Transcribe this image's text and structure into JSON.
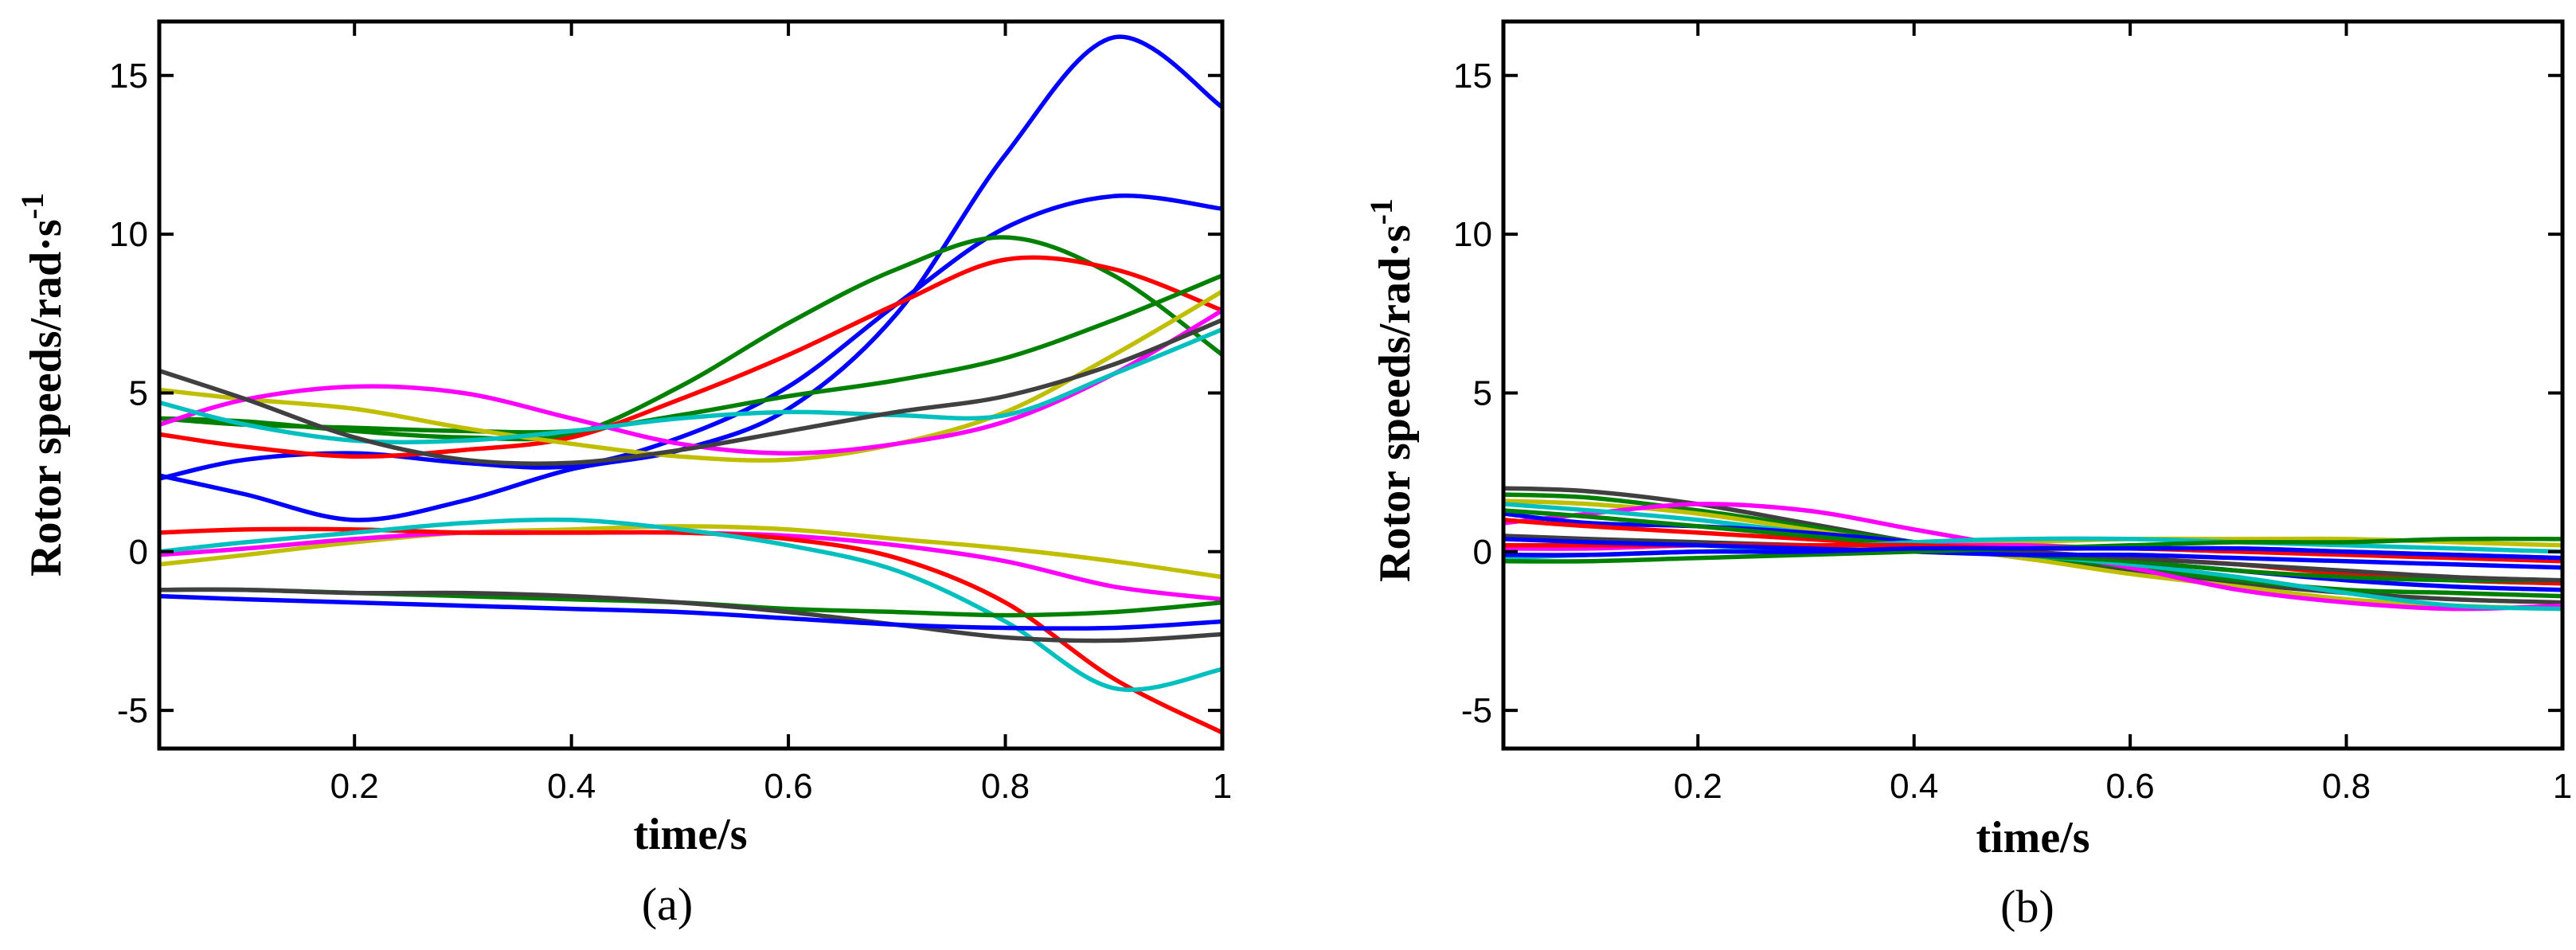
{
  "chart_data": [
    {
      "type": "line",
      "panel_label": "(a)",
      "xlabel": "time/s",
      "ylabel_main": "Rotor speeds/rad·s",
      "ylabel_sup": "-1",
      "xlim": [
        0.02,
        1.0
      ],
      "ylim": [
        -6.2,
        16.7
      ],
      "xticks": [
        0.2,
        0.4,
        0.6,
        0.8,
        1.0
      ],
      "xtick_labels": [
        "0.2",
        "0.4",
        "0.6",
        "0.8",
        "1"
      ],
      "yticks": [
        -5,
        0,
        5,
        10,
        15
      ],
      "ytick_labels": [
        "-5",
        "0",
        "5",
        "10",
        "15"
      ],
      "x": [
        0.02,
        0.1,
        0.2,
        0.3,
        0.4,
        0.5,
        0.6,
        0.7,
        0.8,
        0.9,
        1.0
      ],
      "series": [
        {
          "name": "blue-1",
          "color": "#0000ff",
          "values": [
            2.4,
            1.8,
            1.0,
            1.6,
            2.6,
            3.2,
            4.5,
            7.5,
            12.5,
            16.2,
            14.0
          ]
        },
        {
          "name": "blue-2",
          "color": "#0000ff",
          "values": [
            2.3,
            2.9,
            3.1,
            2.8,
            2.7,
            3.6,
            5.2,
            7.8,
            10.2,
            11.2,
            10.8
          ]
        },
        {
          "name": "green-1",
          "color": "#008000",
          "values": [
            4.2,
            4.1,
            3.8,
            3.6,
            3.7,
            5.2,
            7.2,
            8.9,
            9.9,
            8.7,
            6.2
          ]
        },
        {
          "name": "red-1",
          "color": "#ff0000",
          "values": [
            3.7,
            3.3,
            3.0,
            3.2,
            3.6,
            4.8,
            6.2,
            7.8,
            9.2,
            8.9,
            7.6
          ]
        },
        {
          "name": "green-2",
          "color": "#008000",
          "values": [
            4.2,
            4.0,
            3.9,
            3.8,
            3.8,
            4.3,
            4.9,
            5.4,
            6.1,
            7.3,
            8.7
          ]
        },
        {
          "name": "yellow-1",
          "color": "#bfbf00",
          "values": [
            5.1,
            4.8,
            4.5,
            3.9,
            3.4,
            3.0,
            2.9,
            3.4,
            4.4,
            6.2,
            8.2
          ]
        },
        {
          "name": "magenta-1",
          "color": "#ff00ff",
          "values": [
            4.0,
            4.8,
            5.2,
            5.0,
            4.2,
            3.4,
            3.1,
            3.4,
            4.1,
            5.6,
            7.6
          ]
        },
        {
          "name": "cyan-1",
          "color": "#00bfbf",
          "values": [
            4.7,
            4.0,
            3.5,
            3.5,
            3.8,
            4.2,
            4.4,
            4.3,
            4.3,
            5.6,
            7.0
          ]
        },
        {
          "name": "dark-1",
          "color": "#404040",
          "values": [
            5.7,
            4.8,
            3.6,
            2.9,
            2.8,
            3.2,
            3.8,
            4.4,
            4.9,
            5.9,
            7.3
          ]
        },
        {
          "name": "yellow-2",
          "color": "#bfbf00",
          "values": [
            -0.4,
            -0.1,
            0.3,
            0.6,
            0.7,
            0.8,
            0.7,
            0.4,
            0.1,
            -0.3,
            -0.8
          ]
        },
        {
          "name": "magenta-2",
          "color": "#ff00ff",
          "values": [
            -0.1,
            0.1,
            0.4,
            0.6,
            0.6,
            0.6,
            0.5,
            0.2,
            -0.3,
            -1.1,
            -1.5
          ]
        },
        {
          "name": "red-2",
          "color": "#ff0000",
          "values": [
            0.6,
            0.7,
            0.7,
            0.6,
            0.6,
            0.6,
            0.4,
            -0.2,
            -1.6,
            -4.0,
            -5.7
          ]
        },
        {
          "name": "cyan-2",
          "color": "#00bfbf",
          "values": [
            0.0,
            0.3,
            0.6,
            0.9,
            1.0,
            0.7,
            0.2,
            -0.6,
            -2.2,
            -4.3,
            -3.7
          ]
        },
        {
          "name": "green-3",
          "color": "#008000",
          "values": [
            -1.2,
            -1.2,
            -1.3,
            -1.4,
            -1.5,
            -1.6,
            -1.8,
            -1.9,
            -2.0,
            -1.9,
            -1.6
          ]
        },
        {
          "name": "dark-2",
          "color": "#404040",
          "values": [
            -1.2,
            -1.2,
            -1.3,
            -1.3,
            -1.4,
            -1.6,
            -1.9,
            -2.3,
            -2.7,
            -2.8,
            -2.6
          ]
        },
        {
          "name": "blue-3",
          "color": "#0000ff",
          "values": [
            -1.4,
            -1.5,
            -1.6,
            -1.7,
            -1.8,
            -1.9,
            -2.1,
            -2.3,
            -2.4,
            -2.4,
            -2.2
          ]
        }
      ]
    },
    {
      "type": "line",
      "panel_label": "(b)",
      "xlabel": "time/s",
      "ylabel_main": "Rotor speeds/rad·s",
      "ylabel_sup": "-1",
      "xlim": [
        0.02,
        1.0
      ],
      "ylim": [
        -6.2,
        16.7
      ],
      "xticks": [
        0.2,
        0.4,
        0.6,
        0.8,
        1.0
      ],
      "xtick_labels": [
        "0.2",
        "0.4",
        "0.6",
        "0.8",
        "1"
      ],
      "yticks": [
        -5,
        0,
        5,
        10,
        15
      ],
      "ytick_labels": [
        "-5",
        "0",
        "5",
        "10",
        "15"
      ],
      "x": [
        0.02,
        0.1,
        0.2,
        0.3,
        0.4,
        0.5,
        0.6,
        0.7,
        0.8,
        0.9,
        1.0
      ],
      "series": [
        {
          "name": "dark-1",
          "color": "#404040",
          "values": [
            2.0,
            1.9,
            1.5,
            0.9,
            0.3,
            -0.2,
            -0.6,
            -1.0,
            -1.3,
            -1.5,
            -1.6
          ]
        },
        {
          "name": "green-1",
          "color": "#008000",
          "values": [
            1.8,
            1.7,
            1.3,
            0.8,
            0.3,
            -0.1,
            -0.5,
            -0.9,
            -1.2,
            -1.3,
            -1.4
          ]
        },
        {
          "name": "yellow-1",
          "color": "#bfbf00",
          "values": [
            1.6,
            1.5,
            1.2,
            0.7,
            0.2,
            -0.2,
            -0.7,
            -1.1,
            -1.5,
            -1.7,
            -1.8
          ]
        },
        {
          "name": "magenta-1",
          "color": "#ff00ff",
          "values": [
            0.9,
            1.2,
            1.5,
            1.3,
            0.7,
            0.1,
            -0.5,
            -1.2,
            -1.6,
            -1.8,
            -1.7
          ]
        },
        {
          "name": "cyan-1",
          "color": "#00bfbf",
          "values": [
            1.5,
            1.3,
            1.0,
            0.6,
            0.2,
            -0.1,
            -0.4,
            -0.8,
            -1.3,
            -1.7,
            -1.8
          ]
        },
        {
          "name": "blue-1",
          "color": "#0000ff",
          "values": [
            1.2,
            0.9,
            0.8,
            0.6,
            0.3,
            0.0,
            -0.3,
            -0.6,
            -0.9,
            -1.1,
            -1.2
          ]
        },
        {
          "name": "red-1",
          "color": "#ff0000",
          "values": [
            1.0,
            0.8,
            0.6,
            0.4,
            0.2,
            0.0,
            -0.2,
            -0.4,
            -0.7,
            -0.9,
            -1.0
          ]
        },
        {
          "name": "green-2",
          "color": "#008000",
          "values": [
            1.3,
            1.1,
            0.8,
            0.5,
            0.2,
            -0.1,
            -0.3,
            -0.6,
            -0.8,
            -0.9,
            -0.9
          ]
        },
        {
          "name": "dark-2",
          "color": "#404040",
          "values": [
            0.5,
            0.4,
            0.3,
            0.2,
            0.1,
            0.0,
            -0.2,
            -0.4,
            -0.6,
            -0.8,
            -0.9
          ]
        },
        {
          "name": "yellow-2",
          "color": "#bfbf00",
          "values": [
            -0.1,
            -0.1,
            0.0,
            0.1,
            0.2,
            0.3,
            0.4,
            0.4,
            0.4,
            0.3,
            0.2
          ]
        },
        {
          "name": "magenta-2",
          "color": "#ff00ff",
          "values": [
            0.1,
            0.1,
            0.2,
            0.2,
            0.2,
            0.2,
            0.1,
            0.1,
            0.0,
            -0.1,
            -0.2
          ]
        },
        {
          "name": "cyan-2",
          "color": "#00bfbf",
          "values": [
            -0.2,
            -0.1,
            0.0,
            0.1,
            0.3,
            0.4,
            0.4,
            0.3,
            0.2,
            0.1,
            0.0
          ]
        },
        {
          "name": "red-2",
          "color": "#ff0000",
          "values": [
            0.2,
            0.2,
            0.2,
            0.2,
            0.2,
            0.1,
            0.1,
            0.0,
            -0.1,
            -0.2,
            -0.3
          ]
        },
        {
          "name": "blue-2",
          "color": "#0000ff",
          "values": [
            0.4,
            0.3,
            0.2,
            0.1,
            0.0,
            -0.1,
            -0.1,
            -0.2,
            -0.3,
            -0.4,
            -0.5
          ]
        },
        {
          "name": "green-3",
          "color": "#008000",
          "values": [
            -0.3,
            -0.3,
            -0.2,
            -0.1,
            0.0,
            0.1,
            0.2,
            0.3,
            0.3,
            0.4,
            0.4
          ]
        },
        {
          "name": "blue-3",
          "color": "#0000ff",
          "values": [
            -0.1,
            -0.1,
            0.0,
            0.0,
            0.1,
            0.1,
            0.1,
            0.1,
            0.0,
            -0.1,
            -0.2
          ]
        }
      ]
    }
  ]
}
